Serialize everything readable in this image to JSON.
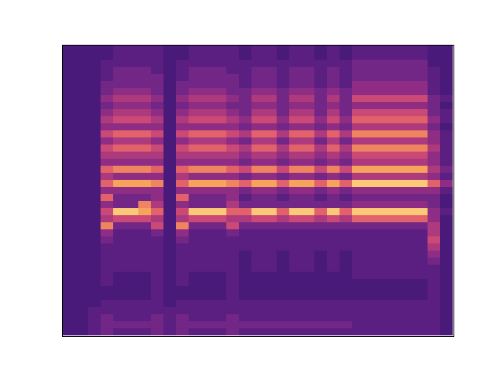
{
  "chart_data": {
    "type": "heatmap",
    "xlim": [
      0,
      31
    ],
    "ylim": [
      0,
      41
    ],
    "tick_labels": false,
    "cells": [
      [
        0,
        0,
        0,
        0,
        0,
        0,
        0,
        0,
        0,
        0,
        0,
        0,
        0,
        0,
        0,
        0,
        0,
        0,
        0,
        0,
        0,
        0,
        0,
        0,
        0,
        0,
        0,
        0,
        0,
        0,
        0,
        0,
        0,
        0,
        0,
        0,
        0,
        0,
        0,
        0,
        0
      ],
      [
        0,
        0,
        0,
        0,
        0,
        0,
        0,
        0,
        0,
        0,
        0,
        0,
        0,
        0,
        0,
        0,
        0,
        0,
        0,
        0,
        0,
        0,
        0,
        0,
        0,
        0,
        0,
        0,
        0,
        0,
        0,
        0,
        0,
        0,
        0,
        0,
        0,
        0,
        0,
        0,
        0
      ],
      [
        0,
        0,
        0,
        0,
        0,
        0,
        0,
        0,
        0,
        0,
        0,
        0,
        0,
        0,
        0,
        0,
        0,
        0,
        0,
        0,
        0,
        0,
        0,
        0,
        0,
        0,
        0,
        0,
        0,
        0,
        0,
        0,
        0,
        0,
        0,
        0,
        0,
        1,
        1,
        1,
        1
      ],
      [
        0,
        0,
        1,
        1,
        1,
        2,
        2,
        3,
        2,
        3,
        4,
        3,
        5,
        3,
        5,
        4,
        3,
        6,
        4,
        6,
        3,
        6,
        3,
        5,
        4,
        7,
        3,
        2,
        1,
        1,
        1,
        1,
        1,
        1,
        0,
        0,
        1,
        1,
        2,
        2,
        2
      ],
      [
        1,
        1,
        1,
        2,
        2,
        2,
        3,
        4,
        3,
        4,
        5,
        3,
        6,
        4,
        6,
        4,
        3,
        7,
        3,
        8,
        3,
        2,
        2,
        9,
        5,
        2,
        1,
        1,
        1,
        1,
        1,
        1,
        0,
        0,
        0,
        0,
        1,
        1,
        1,
        2,
        1
      ],
      [
        1,
        1,
        1,
        2,
        2,
        2,
        3,
        4,
        3,
        4,
        5,
        3,
        6,
        4,
        6,
        4,
        3,
        7,
        3,
        8,
        3,
        2,
        2,
        9,
        5,
        2,
        1,
        1,
        1,
        1,
        1,
        1,
        0,
        0,
        0,
        0,
        1,
        1,
        1,
        2,
        1
      ],
      [
        1,
        1,
        1,
        2,
        2,
        2,
        3,
        4,
        3,
        4,
        5,
        3,
        6,
        4,
        6,
        4,
        3,
        7,
        3,
        8,
        3,
        2,
        7,
        8,
        5,
        2,
        1,
        1,
        1,
        1,
        1,
        1,
        0,
        0,
        0,
        0,
        1,
        1,
        1,
        2,
        1
      ],
      [
        1,
        1,
        1,
        1,
        2,
        2,
        2,
        3,
        2,
        3,
        4,
        3,
        5,
        3,
        5,
        4,
        3,
        6,
        3,
        7,
        3,
        3,
        4,
        6,
        4,
        5,
        2,
        1,
        1,
        1,
        1,
        1,
        1,
        1,
        1,
        1,
        1,
        1,
        2,
        2,
        2
      ],
      [
        0,
        0,
        0,
        0,
        0,
        0,
        0,
        0,
        0,
        0,
        0,
        0,
        0,
        0,
        0,
        0,
        0,
        0,
        0,
        0,
        0,
        0,
        0,
        0,
        0,
        0,
        0,
        0,
        0,
        0,
        0,
        0,
        0,
        0,
        0,
        0,
        0,
        1,
        1,
        1,
        1
      ],
      [
        0,
        0,
        1,
        1,
        1,
        2,
        2,
        3,
        2,
        3,
        4,
        3,
        5,
        3,
        5,
        4,
        3,
        6,
        4,
        6,
        3,
        6,
        3,
        5,
        4,
        7,
        3,
        2,
        1,
        1,
        1,
        1,
        1,
        1,
        0,
        0,
        1,
        1,
        2,
        2,
        2
      ],
      [
        1,
        1,
        1,
        2,
        2,
        2,
        3,
        4,
        3,
        4,
        5,
        3,
        6,
        4,
        6,
        4,
        3,
        7,
        3,
        8,
        3,
        2,
        2,
        9,
        5,
        2,
        1,
        1,
        1,
        1,
        1,
        1,
        0,
        0,
        0,
        0,
        1,
        1,
        1,
        2,
        1
      ],
      [
        1,
        1,
        1,
        2,
        2,
        2,
        3,
        4,
        3,
        4,
        5,
        3,
        6,
        4,
        6,
        4,
        3,
        7,
        3,
        8,
        3,
        2,
        2,
        9,
        5,
        2,
        1,
        1,
        1,
        1,
        1,
        1,
        0,
        0,
        0,
        0,
        1,
        1,
        1,
        2,
        1
      ],
      [
        1,
        1,
        1,
        2,
        2,
        2,
        3,
        4,
        3,
        4,
        5,
        3,
        6,
        4,
        6,
        4,
        3,
        7,
        3,
        8,
        3,
        2,
        2,
        9,
        5,
        2,
        1,
        1,
        1,
        1,
        1,
        1,
        0,
        0,
        0,
        0,
        1,
        1,
        1,
        2,
        1
      ],
      [
        1,
        1,
        1,
        1,
        2,
        2,
        2,
        3,
        2,
        3,
        4,
        3,
        5,
        3,
        5,
        4,
        3,
        6,
        3,
        7,
        3,
        3,
        4,
        6,
        4,
        5,
        2,
        1,
        1,
        1,
        1,
        1,
        1,
        1,
        1,
        1,
        1,
        1,
        2,
        2,
        2
      ],
      [
        0,
        0,
        1,
        1,
        1,
        1,
        2,
        2,
        2,
        2,
        3,
        2,
        4,
        2,
        4,
        3,
        2,
        5,
        2,
        6,
        2,
        1,
        2,
        6,
        4,
        2,
        1,
        1,
        1,
        0,
        0,
        0,
        0,
        0,
        0,
        0,
        1,
        1,
        1,
        2,
        1
      ],
      [
        1,
        1,
        1,
        2,
        2,
        2,
        3,
        4,
        3,
        4,
        5,
        3,
        6,
        4,
        6,
        4,
        3,
        7,
        3,
        8,
        3,
        2,
        2,
        9,
        5,
        2,
        1,
        1,
        1,
        1,
        1,
        1,
        0,
        0,
        0,
        0,
        1,
        1,
        1,
        2,
        1
      ],
      [
        1,
        1,
        1,
        2,
        2,
        2,
        3,
        4,
        3,
        4,
        5,
        3,
        6,
        4,
        6,
        4,
        3,
        7,
        3,
        8,
        3,
        2,
        2,
        9,
        5,
        2,
        1,
        1,
        1,
        1,
        1,
        1,
        0,
        0,
        0,
        0,
        1,
        1,
        1,
        2,
        1
      ],
      [
        0,
        0,
        1,
        1,
        1,
        1,
        2,
        2,
        2,
        2,
        3,
        2,
        4,
        2,
        4,
        3,
        2,
        5,
        2,
        6,
        2,
        1,
        2,
        6,
        4,
        2,
        1,
        1,
        1,
        0,
        0,
        0,
        0,
        0,
        0,
        0,
        1,
        1,
        1,
        2,
        1
      ],
      [
        1,
        1,
        1,
        2,
        2,
        2,
        3,
        4,
        3,
        4,
        5,
        3,
        6,
        4,
        6,
        4,
        3,
        7,
        3,
        8,
        3,
        2,
        2,
        9,
        5,
        2,
        1,
        1,
        1,
        1,
        1,
        1,
        0,
        0,
        0,
        0,
        1,
        1,
        1,
        2,
        1
      ],
      [
        1,
        1,
        1,
        2,
        2,
        2,
        3,
        4,
        3,
        4,
        5,
        3,
        6,
        4,
        6,
        4,
        3,
        7,
        3,
        8,
        3,
        2,
        2,
        9,
        5,
        2,
        1,
        1,
        1,
        1,
        1,
        1,
        0,
        0,
        0,
        0,
        1,
        1,
        1,
        2,
        1
      ],
      [
        0,
        0,
        1,
        1,
        1,
        1,
        2,
        2,
        2,
        2,
        3,
        2,
        4,
        2,
        4,
        3,
        2,
        5,
        2,
        6,
        2,
        1,
        2,
        6,
        4,
        2,
        1,
        1,
        1,
        0,
        0,
        0,
        0,
        0,
        0,
        0,
        1,
        1,
        1,
        2,
        1
      ],
      [
        1,
        1,
        1,
        2,
        2,
        2,
        3,
        4,
        3,
        4,
        5,
        3,
        6,
        4,
        6,
        4,
        3,
        7,
        3,
        8,
        3,
        2,
        2,
        9,
        5,
        2,
        1,
        1,
        1,
        1,
        1,
        1,
        0,
        0,
        0,
        0,
        1,
        1,
        1,
        2,
        1
      ],
      [
        0,
        0,
        1,
        1,
        1,
        1,
        2,
        2,
        2,
        2,
        3,
        2,
        4,
        2,
        4,
        3,
        2,
        5,
        2,
        6,
        2,
        1,
        2,
        6,
        4,
        2,
        1,
        1,
        1,
        0,
        0,
        0,
        0,
        0,
        0,
        0,
        1,
        1,
        1,
        2,
        1
      ],
      [
        1,
        1,
        2,
        2,
        2,
        3,
        3,
        5,
        3,
        5,
        6,
        4,
        7,
        4,
        7,
        5,
        4,
        8,
        4,
        9,
        3,
        2,
        3,
        9,
        6,
        2,
        1,
        1,
        1,
        1,
        1,
        1,
        1,
        0,
        0,
        0,
        1,
        1,
        1,
        1,
        1
      ],
      [
        1,
        1,
        2,
        2,
        2,
        3,
        3,
        5,
        3,
        5,
        6,
        4,
        7,
        4,
        7,
        5,
        4,
        8,
        4,
        9,
        3,
        2,
        3,
        9,
        6,
        2,
        1,
        1,
        1,
        1,
        1,
        1,
        1,
        0,
        0,
        0,
        1,
        1,
        1,
        1,
        1
      ],
      [
        1,
        1,
        2,
        2,
        2,
        3,
        3,
        5,
        3,
        5,
        6,
        4,
        7,
        4,
        7,
        5,
        4,
        8,
        4,
        9,
        3,
        2,
        3,
        9,
        6,
        2,
        1,
        1,
        1,
        1,
        1,
        1,
        1,
        0,
        0,
        0,
        1,
        1,
        1,
        1,
        1
      ],
      [
        1,
        1,
        2,
        2,
        2,
        3,
        3,
        5,
        3,
        5,
        6,
        4,
        7,
        4,
        7,
        5,
        4,
        8,
        4,
        9,
        3,
        2,
        3,
        9,
        6,
        2,
        1,
        1,
        1,
        1,
        1,
        1,
        1,
        0,
        0,
        0,
        1,
        1,
        1,
        1,
        1
      ],
      [
        1,
        1,
        2,
        2,
        2,
        3,
        3,
        5,
        3,
        5,
        6,
        4,
        7,
        4,
        7,
        5,
        4,
        8,
        4,
        9,
        3,
        2,
        3,
        9,
        6,
        2,
        1,
        1,
        1,
        1,
        1,
        1,
        1,
        0,
        0,
        0,
        1,
        1,
        1,
        1,
        1
      ],
      [
        1,
        1,
        2,
        2,
        2,
        3,
        3,
        5,
        3,
        5,
        6,
        4,
        7,
        4,
        7,
        5,
        4,
        8,
        4,
        9,
        3,
        2,
        3,
        9,
        6,
        2,
        1,
        1,
        1,
        1,
        1,
        1,
        1,
        0,
        0,
        0,
        1,
        1,
        1,
        1,
        1
      ],
      [
        0,
        0,
        0,
        1,
        1,
        1,
        1,
        2,
        2,
        2,
        3,
        2,
        3,
        3,
        4,
        3,
        3,
        4,
        3,
        6,
        3,
        2,
        2,
        3,
        3,
        4,
        4,
        5,
        4,
        3,
        2,
        1,
        1,
        1,
        1,
        1,
        1,
        1,
        1,
        1,
        1
      ],
      [
        0,
        0,
        0,
        0,
        0,
        0,
        0,
        1,
        0,
        1,
        1,
        0,
        1,
        1,
        1,
        1,
        1,
        2,
        1,
        3,
        1,
        0,
        0,
        1,
        0,
        0,
        0,
        0,
        0,
        0,
        0,
        0,
        0,
        0,
        0,
        0,
        0,
        0,
        0,
        0,
        0
      ]
    ]
  }
}
